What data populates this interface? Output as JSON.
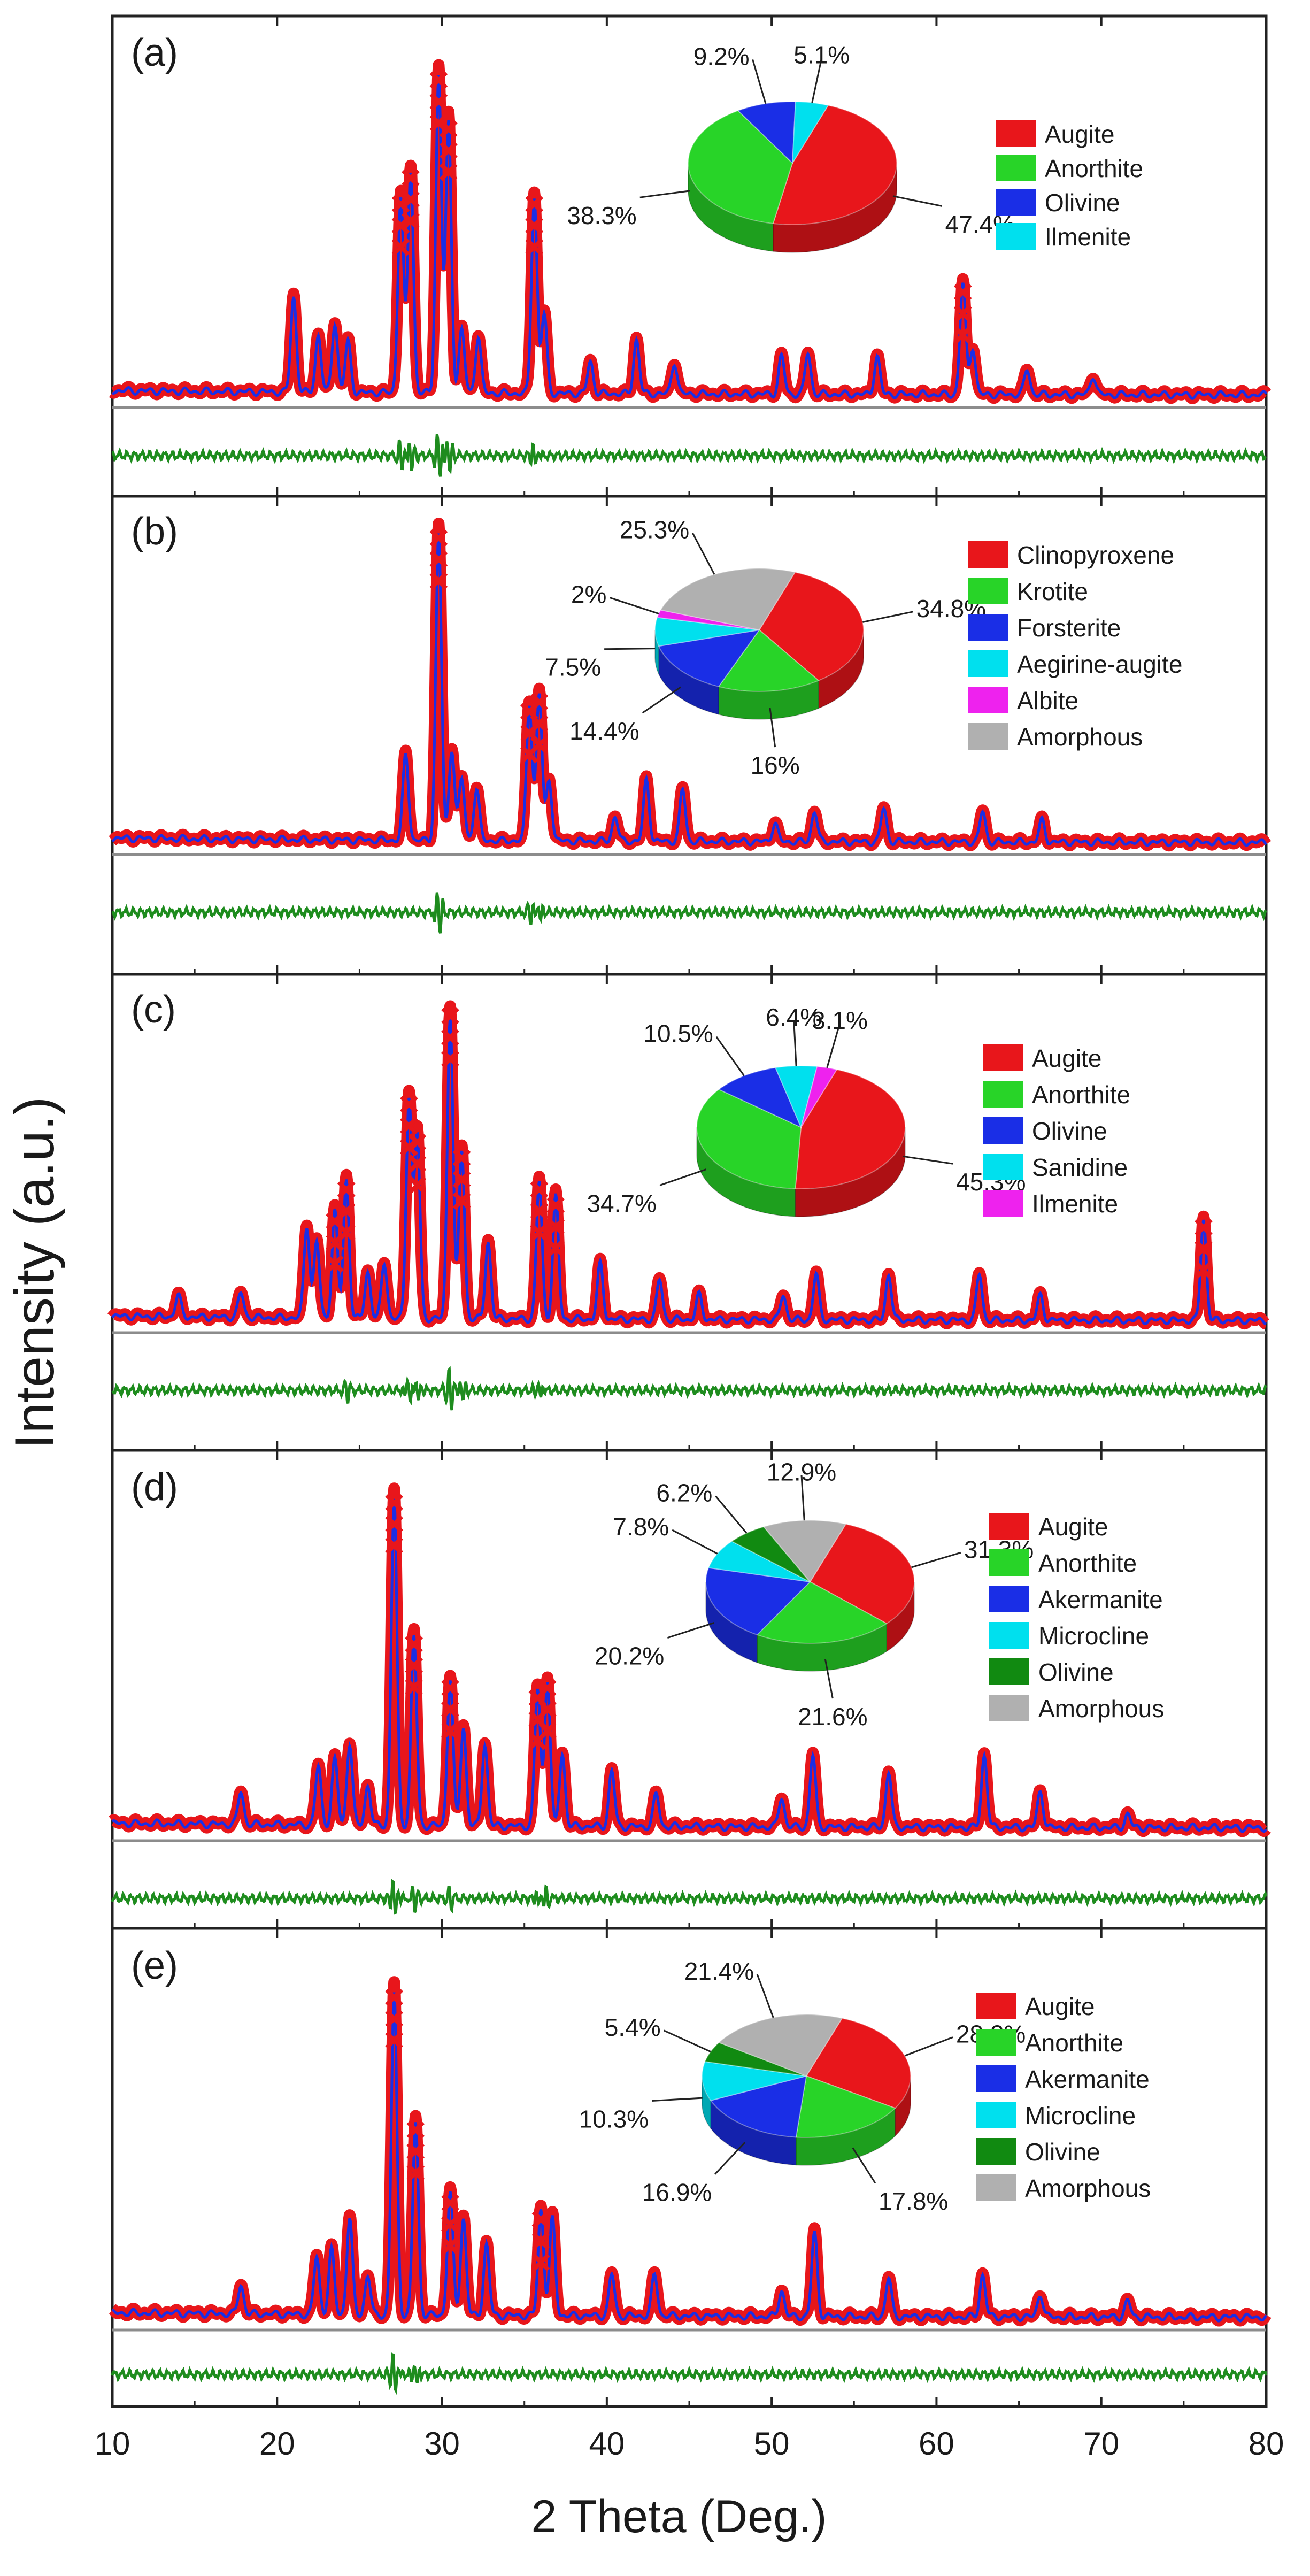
{
  "figure": {
    "ylabel": "Intensity (a.u.)",
    "xlabel": "2 Theta (Deg.)",
    "x_ticks": [
      "10",
      "20",
      "30",
      "40",
      "50",
      "60",
      "70",
      "80"
    ],
    "colors": {
      "observed": "#e8161b",
      "calculated": "#1a2ee6",
      "background": "#8c8c8c",
      "difference": "#1e8c1e"
    }
  },
  "chart_data": [
    {
      "type": "pie",
      "panel": "(a)",
      "title": "",
      "slices": [
        {
          "name": "Augite",
          "value": 47.4,
          "label": "47.4%",
          "color": "#e8161b"
        },
        {
          "name": "Anorthite",
          "value": 38.3,
          "label": "38.3%",
          "color": "#28d428"
        },
        {
          "name": "Olivine",
          "value": 9.2,
          "label": "9.2%",
          "color": "#1a2ee6"
        },
        {
          "name": "Ilmenite",
          "value": 5.1,
          "label": "5.1%",
          "color": "#00e0ee"
        }
      ],
      "xrd_peaks": [
        [
          21,
          0.3
        ],
        [
          22.5,
          0.18
        ],
        [
          23.5,
          0.22
        ],
        [
          24.3,
          0.16
        ],
        [
          27.5,
          0.62
        ],
        [
          28.1,
          0.7
        ],
        [
          29.8,
          1.0
        ],
        [
          30.4,
          0.85
        ],
        [
          31.2,
          0.2
        ],
        [
          32.2,
          0.18
        ],
        [
          35.6,
          0.62
        ],
        [
          36.2,
          0.25
        ],
        [
          39,
          0.1
        ],
        [
          41.8,
          0.17
        ],
        [
          44.1,
          0.1
        ],
        [
          50.6,
          0.12
        ],
        [
          52.2,
          0.13
        ],
        [
          56.4,
          0.12
        ],
        [
          61.6,
          0.35
        ],
        [
          62.2,
          0.15
        ],
        [
          65.5,
          0.08
        ],
        [
          69.5,
          0.06
        ]
      ]
    },
    {
      "type": "pie",
      "panel": "(b)",
      "title": "",
      "slices": [
        {
          "name": "Clinopyroxene",
          "value": 34.8,
          "label": "34.8%",
          "color": "#e8161b"
        },
        {
          "name": "Krotite",
          "value": 16,
          "label": "16%",
          "color": "#28d428"
        },
        {
          "name": "Forsterite",
          "value": 14.4,
          "label": "14.4%",
          "color": "#1a2ee6"
        },
        {
          "name": "Aegirine-augite",
          "value": 7.5,
          "label": "7.5%",
          "color": "#00e0ee"
        },
        {
          "name": "Albite",
          "value": 2,
          "label": "2%",
          "color": "#ee22ee"
        },
        {
          "name": "Amorphous",
          "value": 25.3,
          "label": "25.3%",
          "color": "#b0b0b0"
        }
      ],
      "xrd_peaks": [
        [
          27.8,
          0.28
        ],
        [
          29.8,
          1.0
        ],
        [
          30.6,
          0.3
        ],
        [
          31.2,
          0.2
        ],
        [
          32.1,
          0.17
        ],
        [
          35.3,
          0.45
        ],
        [
          35.9,
          0.48
        ],
        [
          36.5,
          0.2
        ],
        [
          40.5,
          0.08
        ],
        [
          42.4,
          0.2
        ],
        [
          44.6,
          0.17
        ],
        [
          50.2,
          0.06
        ],
        [
          52.6,
          0.1
        ],
        [
          56.8,
          0.11
        ],
        [
          62.8,
          0.1
        ],
        [
          66.4,
          0.07
        ]
      ]
    },
    {
      "type": "pie",
      "panel": "(c)",
      "title": "",
      "slices": [
        {
          "name": "Augite",
          "value": 45.3,
          "label": "45.3%",
          "color": "#e8161b"
        },
        {
          "name": "Anorthite",
          "value": 34.7,
          "label": "34.7%",
          "color": "#28d428"
        },
        {
          "name": "Olivine",
          "value": 10.5,
          "label": "10.5%",
          "color": "#1a2ee6"
        },
        {
          "name": "Sanidine",
          "value": 6.4,
          "label": "6.4%",
          "color": "#00e0ee"
        },
        {
          "name": "Ilmenite",
          "value": 3.1,
          "label": "3.1%",
          "color": "#ee22ee"
        }
      ],
      "xrd_peaks": [
        [
          14,
          0.07
        ],
        [
          17.8,
          0.08
        ],
        [
          21.8,
          0.3
        ],
        [
          22.4,
          0.25
        ],
        [
          23.5,
          0.35
        ],
        [
          24.2,
          0.45
        ],
        [
          25.5,
          0.15
        ],
        [
          26.5,
          0.18
        ],
        [
          28,
          0.72
        ],
        [
          28.5,
          0.6
        ],
        [
          30.5,
          1.0
        ],
        [
          31.2,
          0.55
        ],
        [
          32.8,
          0.25
        ],
        [
          35.9,
          0.45
        ],
        [
          36.9,
          0.4
        ],
        [
          39.6,
          0.18
        ],
        [
          43.2,
          0.13
        ],
        [
          45.6,
          0.08
        ],
        [
          50.7,
          0.08
        ],
        [
          52.7,
          0.15
        ],
        [
          57.1,
          0.15
        ],
        [
          62.6,
          0.15
        ],
        [
          66.3,
          0.08
        ],
        [
          76.2,
          0.33
        ]
      ]
    },
    {
      "type": "pie",
      "panel": "(d)",
      "title": "",
      "slices": [
        {
          "name": "Augite",
          "value": 31.3,
          "label": "31.3%",
          "color": "#e8161b"
        },
        {
          "name": "Anorthite",
          "value": 21.6,
          "label": "21.6%",
          "color": "#28d428"
        },
        {
          "name": "Akermanite",
          "value": 20.2,
          "label": "20.2%",
          "color": "#1a2ee6"
        },
        {
          "name": "Microcline",
          "value": 7.8,
          "label": "7.8%",
          "color": "#00e0ee"
        },
        {
          "name": "Olivine",
          "value": 6.2,
          "label": "6.2%",
          "color": "#118a11"
        },
        {
          "name": "Amorphous",
          "value": 12.9,
          "label": "12.9%",
          "color": "#b0b0b0"
        }
      ],
      "xrd_peaks": [
        [
          17.8,
          0.1
        ],
        [
          22.5,
          0.18
        ],
        [
          23.5,
          0.2
        ],
        [
          24.4,
          0.25
        ],
        [
          25.5,
          0.12
        ],
        [
          27.1,
          1.0
        ],
        [
          28.3,
          0.58
        ],
        [
          30.5,
          0.45
        ],
        [
          31.3,
          0.3
        ],
        [
          32.6,
          0.25
        ],
        [
          35.8,
          0.42
        ],
        [
          36.4,
          0.45
        ],
        [
          37.3,
          0.22
        ],
        [
          40.3,
          0.17
        ],
        [
          43,
          0.1
        ],
        [
          50.6,
          0.09
        ],
        [
          52.5,
          0.22
        ],
        [
          57.1,
          0.17
        ],
        [
          62.9,
          0.22
        ],
        [
          66.3,
          0.11
        ],
        [
          71.6,
          0.04
        ]
      ]
    },
    {
      "type": "pie",
      "panel": "(e)",
      "title": "",
      "slices": [
        {
          "name": "Augite",
          "value": 28.2,
          "label": "28.2%",
          "color": "#e8161b"
        },
        {
          "name": "Anorthite",
          "value": 17.8,
          "label": "17.8%",
          "color": "#28d428"
        },
        {
          "name": "Akermanite",
          "value": 16.9,
          "label": "16.9%",
          "color": "#1a2ee6"
        },
        {
          "name": "Microcline",
          "value": 10.3,
          "label": "10.3%",
          "color": "#00e0ee"
        },
        {
          "name": "Olivine",
          "value": 5.4,
          "label": "5.4%",
          "color": "#118a11"
        },
        {
          "name": "Amorphous",
          "value": 21.4,
          "label": "21.4%",
          "color": "#b0b0b0"
        }
      ],
      "xrd_peaks": [
        [
          17.8,
          0.09
        ],
        [
          22.4,
          0.18
        ],
        [
          23.3,
          0.2
        ],
        [
          24.4,
          0.3
        ],
        [
          25.5,
          0.12
        ],
        [
          27.1,
          1.0
        ],
        [
          28.4,
          0.6
        ],
        [
          30.5,
          0.38
        ],
        [
          31.3,
          0.3
        ],
        [
          32.7,
          0.22
        ],
        [
          36,
          0.33
        ],
        [
          36.7,
          0.3
        ],
        [
          40.3,
          0.13
        ],
        [
          42.9,
          0.13
        ],
        [
          50.6,
          0.08
        ],
        [
          52.6,
          0.26
        ],
        [
          57.1,
          0.12
        ],
        [
          62.8,
          0.13
        ],
        [
          66.3,
          0.07
        ],
        [
          71.6,
          0.05
        ]
      ]
    }
  ]
}
